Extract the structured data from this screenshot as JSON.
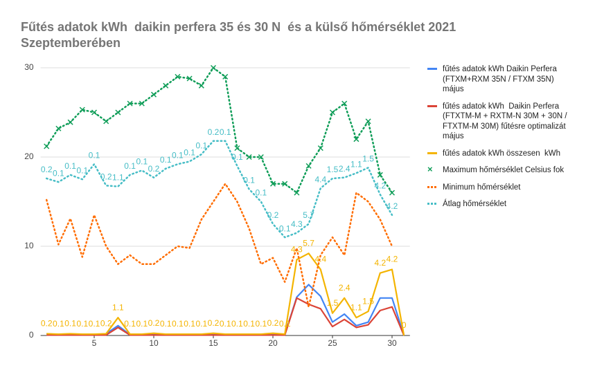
{
  "chart_data": {
    "type": "line",
    "title": "Fűtés adatok kWh  daikin perfera 35 és 30 N  és a külső hőmérséklet 2021 Szeptemberében",
    "x": [
      1,
      2,
      3,
      4,
      5,
      6,
      7,
      8,
      9,
      10,
      11,
      12,
      13,
      14,
      15,
      16,
      17,
      18,
      19,
      20,
      21,
      22,
      23,
      24,
      25,
      26,
      27,
      28,
      29,
      30,
      31
    ],
    "xlim": [
      0.5,
      31.5
    ],
    "xticks": [
      5,
      10,
      15,
      20,
      25,
      30
    ],
    "ylim": [
      0,
      30
    ],
    "yticks": [
      0,
      10,
      20,
      30
    ],
    "grid": true,
    "series": [
      {
        "name": "fűtés adatok kWh Daikin Perfera (FTXM+RXM 35N / FTXM 35N) május",
        "color": "#4285f4",
        "dash": "solid",
        "values": [
          0.2,
          0.1,
          0.1,
          0.1,
          0.1,
          0.2,
          1.1,
          0.1,
          0.1,
          0.2,
          0.1,
          0.1,
          0.1,
          0.1,
          0.2,
          0.1,
          0.1,
          0.1,
          0.1,
          0.2,
          0.1,
          4.3,
          5.7,
          4.4,
          1.5,
          2.4,
          1.1,
          1.5,
          4.2,
          4.2,
          0
        ]
      },
      {
        "name": "fűtés adatok kWh  Daikin Perfera (FTXTM-M + RXTM-N 30M + 30N / FTXTM-M 30M) fűtésre optimalizát május",
        "color": "#db4437",
        "dash": "solid",
        "values": [
          0.05,
          0.05,
          0.05,
          0.05,
          0.05,
          0.05,
          0.9,
          0.05,
          0.05,
          0.05,
          0.05,
          0.05,
          0.05,
          0.05,
          0.05,
          0.05,
          0.05,
          0.05,
          0.05,
          0.05,
          0.05,
          4.2,
          3.5,
          3,
          1,
          1.8,
          0.9,
          1.2,
          2.8,
          3.2,
          0
        ]
      },
      {
        "name": "fűtés adatok kWh összesen  kWh",
        "color": "#f4b400",
        "dash": "solid",
        "values": [
          0.2,
          0.15,
          0.2,
          0.15,
          0.15,
          0.2,
          2,
          0.15,
          0.15,
          0.25,
          0.15,
          0.15,
          0.15,
          0.15,
          0.25,
          0.15,
          0.15,
          0.15,
          0.15,
          0.25,
          0.15,
          8.5,
          9.2,
          7.4,
          2.5,
          4.2,
          2,
          2.7,
          7,
          7.4,
          0
        ]
      },
      {
        "name": "Maximum hőmérséklet Celsius fok",
        "color": "#0f9d58",
        "dash": "dotted",
        "marker": "x",
        "values": [
          21.2,
          23.2,
          23.9,
          25.3,
          25,
          24,
          25,
          26,
          26,
          27,
          28,
          29,
          28.8,
          28,
          30,
          29,
          21,
          20,
          20,
          17,
          17,
          16,
          19,
          21,
          25,
          26,
          22,
          24,
          18,
          16,
          null
        ]
      },
      {
        "name": "Minimum hőmérséklet",
        "color": "#ff6d01",
        "dash": "dotted",
        "values": [
          15.2,
          10.2,
          13.1,
          8.8,
          13.5,
          10,
          8,
          9,
          8,
          8,
          9,
          10,
          9.8,
          13,
          15,
          17,
          15,
          12,
          8,
          8.7,
          6,
          9.8,
          3.2,
          9,
          11,
          9,
          16,
          15,
          13,
          10,
          null
        ]
      },
      {
        "name": "Átlag hőmérséklet",
        "color": "#46bdc6",
        "dash": "dotted",
        "values": [
          17.6,
          17.2,
          18,
          17.5,
          19.2,
          16.8,
          16.7,
          18,
          18.5,
          17.7,
          18.7,
          19.2,
          19.5,
          20.3,
          21.8,
          21.8,
          19,
          16.4,
          15,
          12.5,
          11,
          11.5,
          12.5,
          16.5,
          17.6,
          17.7,
          18.2,
          18.8,
          15.8,
          13.5,
          null
        ]
      }
    ]
  }
}
